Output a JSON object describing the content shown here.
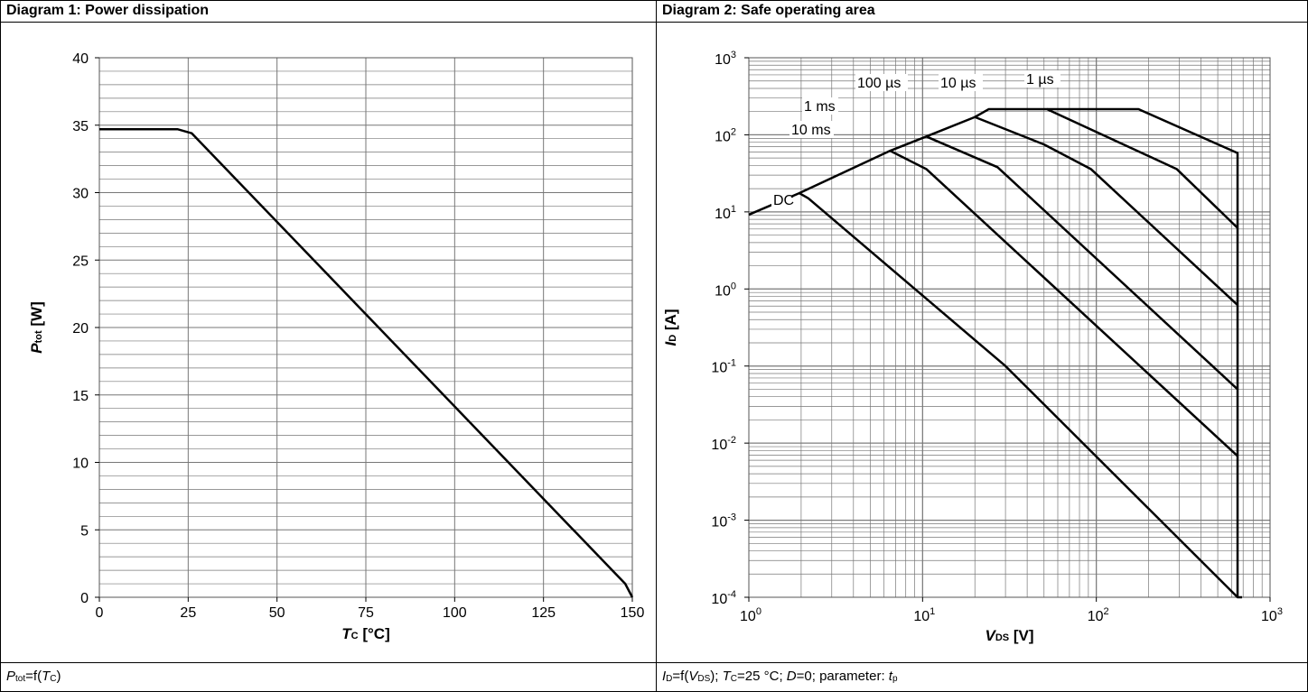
{
  "diagram1": {
    "header": "Diagram 1: Power dissipation",
    "caption": {
      "lhs_main": "P",
      "lhs_sub": "tot",
      "mid": "=f(",
      "arg_main": "T",
      "arg_sub": "C",
      "end": ")"
    }
  },
  "diagram2": {
    "header": "Diagram 2: Safe operating area",
    "caption": {
      "id_main": "I",
      "id_sub": "D",
      "eq": "=f(",
      "vds_main": "V",
      "vds_sub": "DS",
      "after_vds": "); ",
      "tc_main": "T",
      "tc_sub": "C",
      "tc_val": "=25 °C; ",
      "d_main": "D",
      "d_val": "=0; parameter: ",
      "tp_main": "t",
      "tp_sub": "p"
    }
  },
  "colors": {
    "grid": "#777777",
    "curve": "#000000"
  },
  "chart_data": [
    {
      "type": "line",
      "title": "Diagram 1: Power dissipation",
      "xlabel_main": "T",
      "xlabel_sub": "C",
      "xlabel_unit": " [°C]",
      "ylabel_main": "P",
      "ylabel_sub": "tot",
      "ylabel_unit": " [W]",
      "xlim": [
        0,
        150
      ],
      "ylim": [
        0,
        40
      ],
      "xticks": [
        0,
        25,
        50,
        75,
        100,
        125,
        150
      ],
      "yticks": [
        0,
        5,
        10,
        15,
        20,
        25,
        30,
        35,
        40
      ],
      "grid": true,
      "series": [
        {
          "x": [
            0,
            22,
            26,
            148,
            150
          ],
          "y": [
            34.7,
            34.7,
            34.4,
            1.0,
            0
          ]
        }
      ]
    },
    {
      "type": "line",
      "title": "Diagram 2: Safe operating area",
      "xscale": "log",
      "yscale": "log",
      "xlabel_main": "V",
      "xlabel_sub": "DS",
      "xlabel_unit": " [V]",
      "ylabel_main": "I",
      "ylabel_sub": "D",
      "ylabel_unit": " [A]",
      "xlim": [
        1,
        1000
      ],
      "ylim": [
        0.0001,
        1000
      ],
      "xtick_exps": [
        "0",
        "1",
        "2",
        "3"
      ],
      "ytick_exps": [
        "-4",
        "-3",
        "-2",
        "-1",
        "0",
        "1",
        "2",
        "3"
      ],
      "grid": true,
      "series": [
        {
          "name": "DC",
          "x": [
            1,
            1.95,
            2.2,
            30,
            650
          ],
          "y": [
            9.2,
            17.5,
            15,
            0.1,
            0.0001
          ]
        },
        {
          "name": "10 ms",
          "x": [
            1.95,
            6.5,
            10.5,
            650
          ],
          "y": [
            17.5,
            62,
            36,
            0.0068
          ]
        },
        {
          "name": "1 ms",
          "x": [
            6.5,
            10.5,
            27,
            650
          ],
          "y": [
            62,
            95,
            38,
            0.05
          ]
        },
        {
          "name": "100 µs",
          "x": [
            10.5,
            20,
            50,
            93,
            650
          ],
          "y": [
            95,
            170,
            75,
            36,
            0.62
          ]
        },
        {
          "name": "10 µs",
          "x": [
            20,
            24,
            52,
            290,
            650
          ],
          "y": [
            170,
            215,
            215,
            36,
            6.2
          ]
        },
        {
          "name": "1 µs",
          "x": [
            52,
            175,
            650,
            650,
            690
          ],
          "y": [
            215,
            215,
            58,
            0.0001,
            0.0001
          ]
        }
      ],
      "annotations": [
        "100 µs",
        "10 µs",
        "1 µs",
        "1 ms",
        "10 ms",
        "DC"
      ]
    }
  ]
}
